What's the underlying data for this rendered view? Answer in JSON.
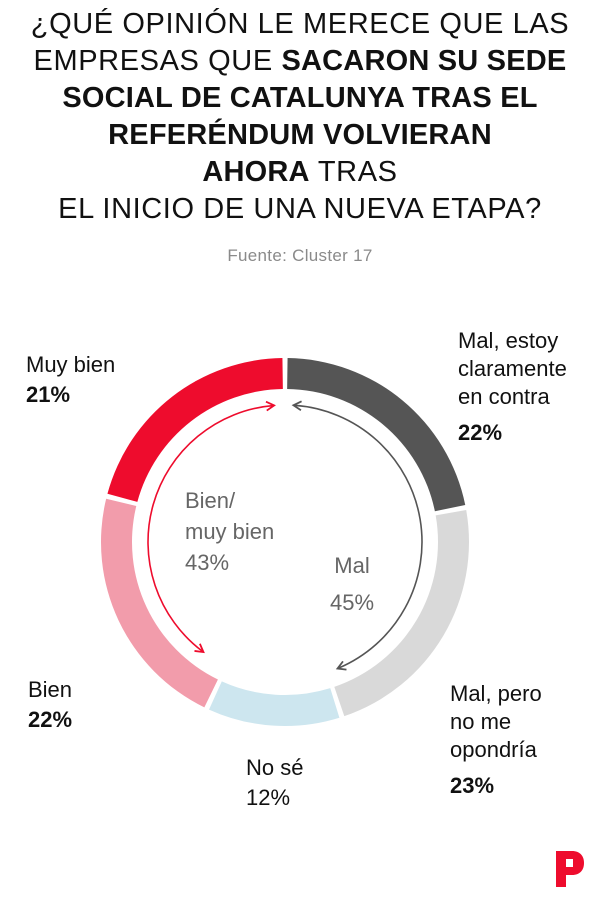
{
  "title": {
    "line1": "¿QUÉ OPINIÓN LE MERECE QUE LAS",
    "line2_regular": "EMPRESAS QUE",
    "line2_bold": "SACARON SU SEDE",
    "line3_bold": "SOCIAL DE CATALUNYA TRAS EL",
    "line4_bold": "REFERÉNDUM VOLVIERAN",
    "line5_bold": "AHORA",
    "line5_regular": "TRAS",
    "line6": "EL INICIO DE UNA NUEVA ETAPA?"
  },
  "source": "Fuente: Cluster 17",
  "chart_data": {
    "type": "pie",
    "variant": "donut",
    "slices": [
      {
        "label": "Mal, estoy claramente en contra",
        "label_lines": [
          "Mal, estoy",
          "claramente",
          "en contra"
        ],
        "pct_text": "22%",
        "value": 22,
        "color": "#555555"
      },
      {
        "label": "Mal, pero no me opondría",
        "label_lines": [
          "Mal, pero",
          "no me",
          "opondría"
        ],
        "pct_text": "23%",
        "value": 23,
        "color": "#d9d9d9"
      },
      {
        "label": "No sé",
        "label_lines": [
          "No sé"
        ],
        "pct_text": "12%",
        "value": 12,
        "color": "#cde6ef"
      },
      {
        "label": "Bien",
        "label_lines": [
          "Bien"
        ],
        "pct_text": "22%",
        "value": 22,
        "color": "#f29cab"
      },
      {
        "label": "Muy bien",
        "label_lines": [
          "Muy bien"
        ],
        "pct_text": "21%",
        "value": 21,
        "color": "#ee0c2d"
      }
    ],
    "groups": [
      {
        "label_lines": [
          "Bien/",
          "muy bien"
        ],
        "pct_text": "43%",
        "value": 43,
        "color": "#ee0c2d"
      },
      {
        "label_lines": [
          "Mal"
        ],
        "pct_text": "45%",
        "value": 45,
        "color": "#555555"
      }
    ]
  },
  "brand": {
    "icon": "p-logo-icon",
    "color": "#ee0c2d"
  }
}
